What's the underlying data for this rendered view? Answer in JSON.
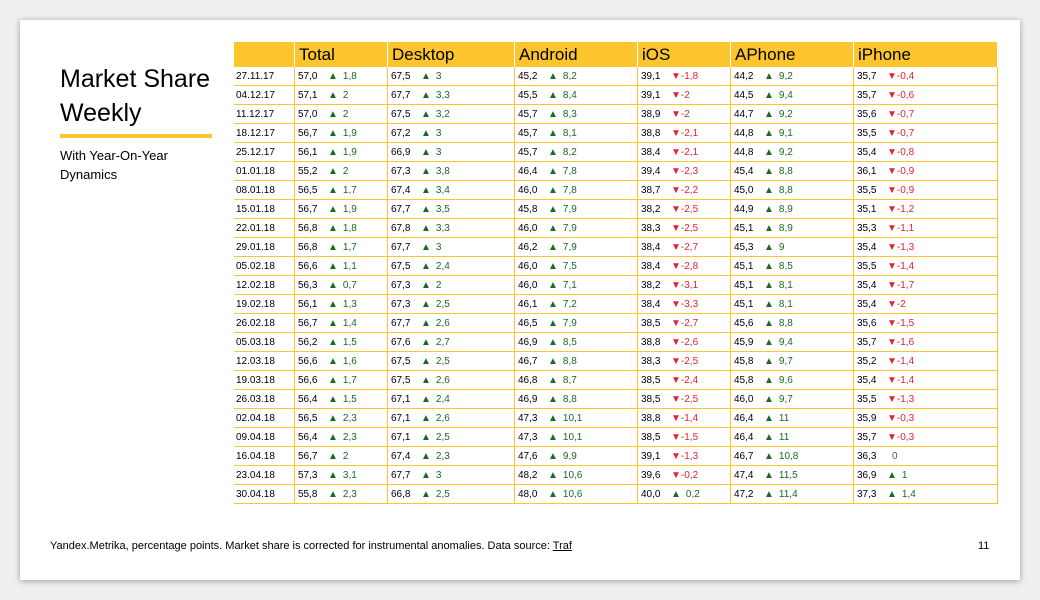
{
  "title": "Market Share Weekly",
  "subtitle": "With Year-On-Year Dynamics",
  "columns": [
    "Total",
    "Desktop",
    "Android",
    "iOS",
    "APhone",
    "iPhone"
  ],
  "rows": [
    {
      "date": "27.11.17",
      "cells": [
        [
          "57,0",
          "1,8"
        ],
        [
          "67,5",
          "3"
        ],
        [
          "45,2",
          "8,2"
        ],
        [
          "39,1",
          "-1,8"
        ],
        [
          "44,2",
          "9,2"
        ],
        [
          "35,7",
          "-0,4"
        ]
      ]
    },
    {
      "date": "04.12.17",
      "cells": [
        [
          "57,1",
          "2"
        ],
        [
          "67,7",
          "3,3"
        ],
        [
          "45,5",
          "8,4"
        ],
        [
          "39,1",
          "-2"
        ],
        [
          "44,5",
          "9,4"
        ],
        [
          "35,7",
          "-0,6"
        ]
      ]
    },
    {
      "date": "11.12.17",
      "cells": [
        [
          "57,0",
          "2"
        ],
        [
          "67,5",
          "3,2"
        ],
        [
          "45,7",
          "8,3"
        ],
        [
          "38,9",
          "-2"
        ],
        [
          "44,7",
          "9,2"
        ],
        [
          "35,6",
          "-0,7"
        ]
      ]
    },
    {
      "date": "18.12.17",
      "cells": [
        [
          "56,7",
          "1,9"
        ],
        [
          "67,2",
          "3"
        ],
        [
          "45,7",
          "8,1"
        ],
        [
          "38,8",
          "-2,1"
        ],
        [
          "44,8",
          "9,1"
        ],
        [
          "35,5",
          "-0,7"
        ]
      ]
    },
    {
      "date": "25.12.17",
      "cells": [
        [
          "56,1",
          "1,9"
        ],
        [
          "66,9",
          "3"
        ],
        [
          "45,7",
          "8,2"
        ],
        [
          "38,4",
          "-2,1"
        ],
        [
          "44,8",
          "9,2"
        ],
        [
          "35,4",
          "-0,8"
        ]
      ]
    },
    {
      "date": "01.01.18",
      "cells": [
        [
          "55,2",
          "2"
        ],
        [
          "67,3",
          "3,8"
        ],
        [
          "46,4",
          "7,8"
        ],
        [
          "39,4",
          "-2,3"
        ],
        [
          "45,4",
          "8,8"
        ],
        [
          "36,1",
          "-0,9"
        ]
      ]
    },
    {
      "date": "08.01.18",
      "cells": [
        [
          "56,5",
          "1,7"
        ],
        [
          "67,4",
          "3,4"
        ],
        [
          "46,0",
          "7,8"
        ],
        [
          "38,7",
          "-2,2"
        ],
        [
          "45,0",
          "8,8"
        ],
        [
          "35,5",
          "-0,9"
        ]
      ]
    },
    {
      "date": "15.01.18",
      "cells": [
        [
          "56,7",
          "1,9"
        ],
        [
          "67,7",
          "3,5"
        ],
        [
          "45,8",
          "7,9"
        ],
        [
          "38,2",
          "-2,5"
        ],
        [
          "44,9",
          "8,9"
        ],
        [
          "35,1",
          "-1,2"
        ]
      ]
    },
    {
      "date": "22.01.18",
      "cells": [
        [
          "56,8",
          "1,8"
        ],
        [
          "67,8",
          "3,3"
        ],
        [
          "46,0",
          "7,9"
        ],
        [
          "38,3",
          "-2,5"
        ],
        [
          "45,1",
          "8,9"
        ],
        [
          "35,3",
          "-1,1"
        ]
      ]
    },
    {
      "date": "29.01.18",
      "cells": [
        [
          "56,8",
          "1,7"
        ],
        [
          "67,7",
          "3"
        ],
        [
          "46,2",
          "7,9"
        ],
        [
          "38,4",
          "-2,7"
        ],
        [
          "45,3",
          "9"
        ],
        [
          "35,4",
          "-1,3"
        ]
      ]
    },
    {
      "date": "05.02.18",
      "cells": [
        [
          "56,6",
          "1,1"
        ],
        [
          "67,5",
          "2,4"
        ],
        [
          "46,0",
          "7,5"
        ],
        [
          "38,4",
          "-2,8"
        ],
        [
          "45,1",
          "8,5"
        ],
        [
          "35,5",
          "-1,4"
        ]
      ]
    },
    {
      "date": "12.02.18",
      "cells": [
        [
          "56,3",
          "0,7"
        ],
        [
          "67,3",
          "2"
        ],
        [
          "46,0",
          "7,1"
        ],
        [
          "38,2",
          "-3,1"
        ],
        [
          "45,1",
          "8,1"
        ],
        [
          "35,4",
          "-1,7"
        ]
      ]
    },
    {
      "date": "19.02.18",
      "cells": [
        [
          "56,1",
          "1,3"
        ],
        [
          "67,3",
          "2,5"
        ],
        [
          "46,1",
          "7,2"
        ],
        [
          "38,4",
          "-3,3"
        ],
        [
          "45,1",
          "8,1"
        ],
        [
          "35,4",
          "-2"
        ]
      ]
    },
    {
      "date": "26.02.18",
      "cells": [
        [
          "56,7",
          "1,4"
        ],
        [
          "67,7",
          "2,6"
        ],
        [
          "46,5",
          "7,9"
        ],
        [
          "38,5",
          "-2,7"
        ],
        [
          "45,6",
          "8,8"
        ],
        [
          "35,6",
          "-1,5"
        ]
      ]
    },
    {
      "date": "05.03.18",
      "cells": [
        [
          "56,2",
          "1,5"
        ],
        [
          "67,6",
          "2,7"
        ],
        [
          "46,9",
          "8,5"
        ],
        [
          "38,8",
          "-2,6"
        ],
        [
          "45,9",
          "9,4"
        ],
        [
          "35,7",
          "-1,6"
        ]
      ]
    },
    {
      "date": "12.03.18",
      "cells": [
        [
          "56,6",
          "1,6"
        ],
        [
          "67,5",
          "2,5"
        ],
        [
          "46,7",
          "8,8"
        ],
        [
          "38,3",
          "-2,5"
        ],
        [
          "45,8",
          "9,7"
        ],
        [
          "35,2",
          "-1,4"
        ]
      ]
    },
    {
      "date": "19.03.18",
      "cells": [
        [
          "56,6",
          "1,7"
        ],
        [
          "67,5",
          "2,6"
        ],
        [
          "46,8",
          "8,7"
        ],
        [
          "38,5",
          "-2,4"
        ],
        [
          "45,8",
          "9,6"
        ],
        [
          "35,4",
          "-1,4"
        ]
      ]
    },
    {
      "date": "26.03.18",
      "cells": [
        [
          "56,4",
          "1,5"
        ],
        [
          "67,1",
          "2,4"
        ],
        [
          "46,9",
          "8,8"
        ],
        [
          "38,5",
          "-2,5"
        ],
        [
          "46,0",
          "9,7"
        ],
        [
          "35,5",
          "-1,3"
        ]
      ]
    },
    {
      "date": "02.04.18",
      "cells": [
        [
          "56,5",
          "2,3"
        ],
        [
          "67,1",
          "2,6"
        ],
        [
          "47,3",
          "10,1"
        ],
        [
          "38,8",
          "-1,4"
        ],
        [
          "46,4",
          "11"
        ],
        [
          "35,9",
          "-0,3"
        ]
      ]
    },
    {
      "date": "09.04.18",
      "cells": [
        [
          "56,4",
          "2,3"
        ],
        [
          "67,1",
          "2,5"
        ],
        [
          "47,3",
          "10,1"
        ],
        [
          "38,5",
          "-1,5"
        ],
        [
          "46,4",
          "11"
        ],
        [
          "35,7",
          "-0,3"
        ]
      ]
    },
    {
      "date": "16.04.18",
      "cells": [
        [
          "56,7",
          "2"
        ],
        [
          "67,4",
          "2,3"
        ],
        [
          "47,6",
          "9,9"
        ],
        [
          "39,1",
          "-1,3"
        ],
        [
          "46,7",
          "10,8"
        ],
        [
          "36,3",
          "0"
        ]
      ]
    },
    {
      "date": "23.04.18",
      "cells": [
        [
          "57,3",
          "3,1"
        ],
        [
          "67,7",
          "3"
        ],
        [
          "48,2",
          "10,6"
        ],
        [
          "39,6",
          "-0,2"
        ],
        [
          "47,4",
          "11,5"
        ],
        [
          "36,9",
          "1"
        ]
      ]
    },
    {
      "date": "30.04.18",
      "cells": [
        [
          "55,8",
          "2,3"
        ],
        [
          "66,8",
          "2,5"
        ],
        [
          "48,0",
          "10,6"
        ],
        [
          "40,0",
          "0,2"
        ],
        [
          "47,2",
          "11,4"
        ],
        [
          "37,3",
          "1,4"
        ]
      ]
    }
  ],
  "footer": {
    "text": "Yandex.Metrika, percentage points. Market share is corrected for instrumental anomalies. Data source: ",
    "link": "Traf"
  },
  "page_number": "11",
  "colors": {
    "accent": "#fcc52b",
    "up": "#1a6b1a",
    "down": "#e0242c"
  },
  "icons": {
    "up": "triangle-up-icon",
    "down": "triangle-down-icon"
  }
}
